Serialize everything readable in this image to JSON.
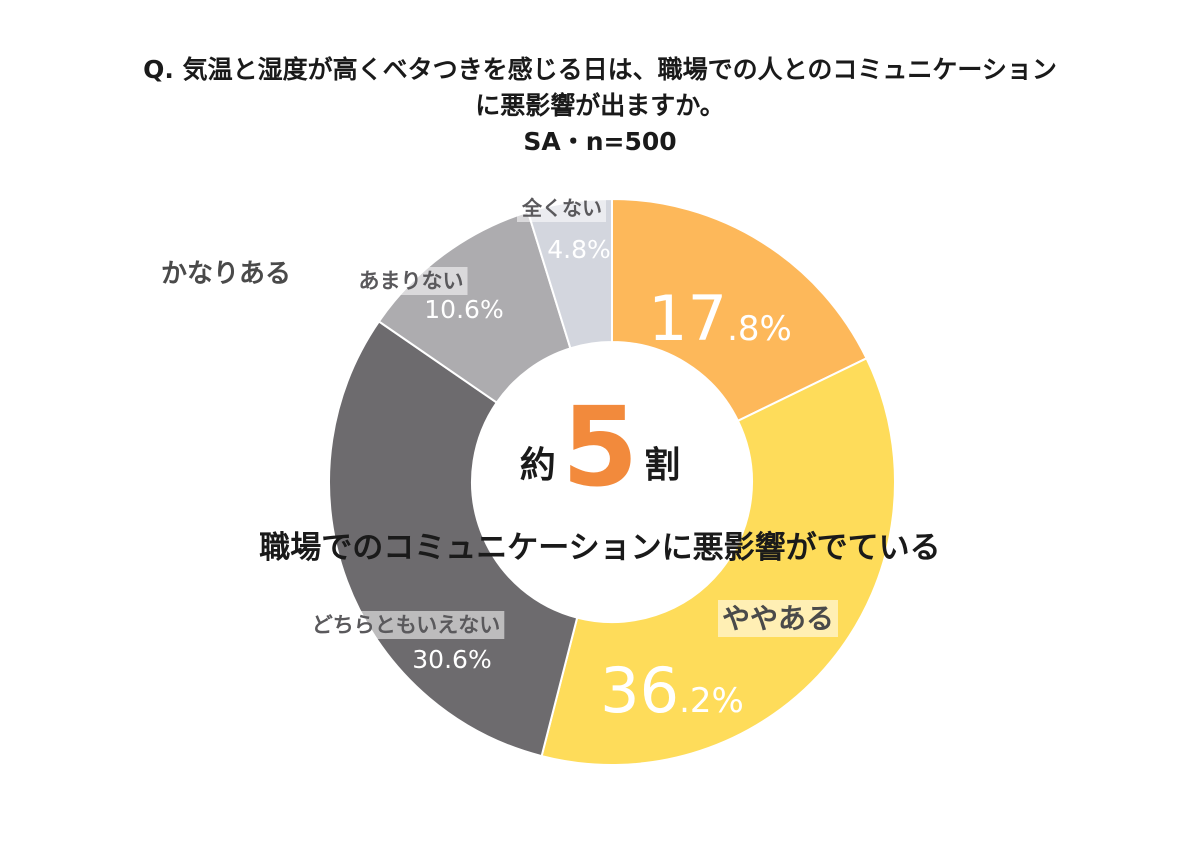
{
  "title_line1": "Q.  気温と湿度が高くベタつきを感じる日は、職場での人とのコミュニケーション",
  "title_line2": "に悪影響が出ますか。",
  "title_line3": "SA・n=500",
  "center": {
    "prefix": "約",
    "number": "5",
    "suffix": "割",
    "sub": "職場でのコミュニケーションに悪影響がでている"
  },
  "chart_data": {
    "type": "pie",
    "donut": true,
    "categories": [
      "かなりある",
      "ややある",
      "どちらともいえない",
      "あまりない",
      "全くない"
    ],
    "values": [
      17.8,
      36.2,
      30.6,
      10.6,
      4.8
    ],
    "value_labels": [
      {
        "int": "17",
        "dec": ".8%"
      },
      {
        "int": "36",
        "dec": ".2%"
      },
      {
        "text": "30.6%"
      },
      {
        "text": "10.6%"
      },
      {
        "text": "4.8%"
      }
    ],
    "colors": [
      "#fdb85a",
      "#fedc5a",
      "#6d6b6e",
      "#adacaf",
      "#d3d6de"
    ]
  }
}
